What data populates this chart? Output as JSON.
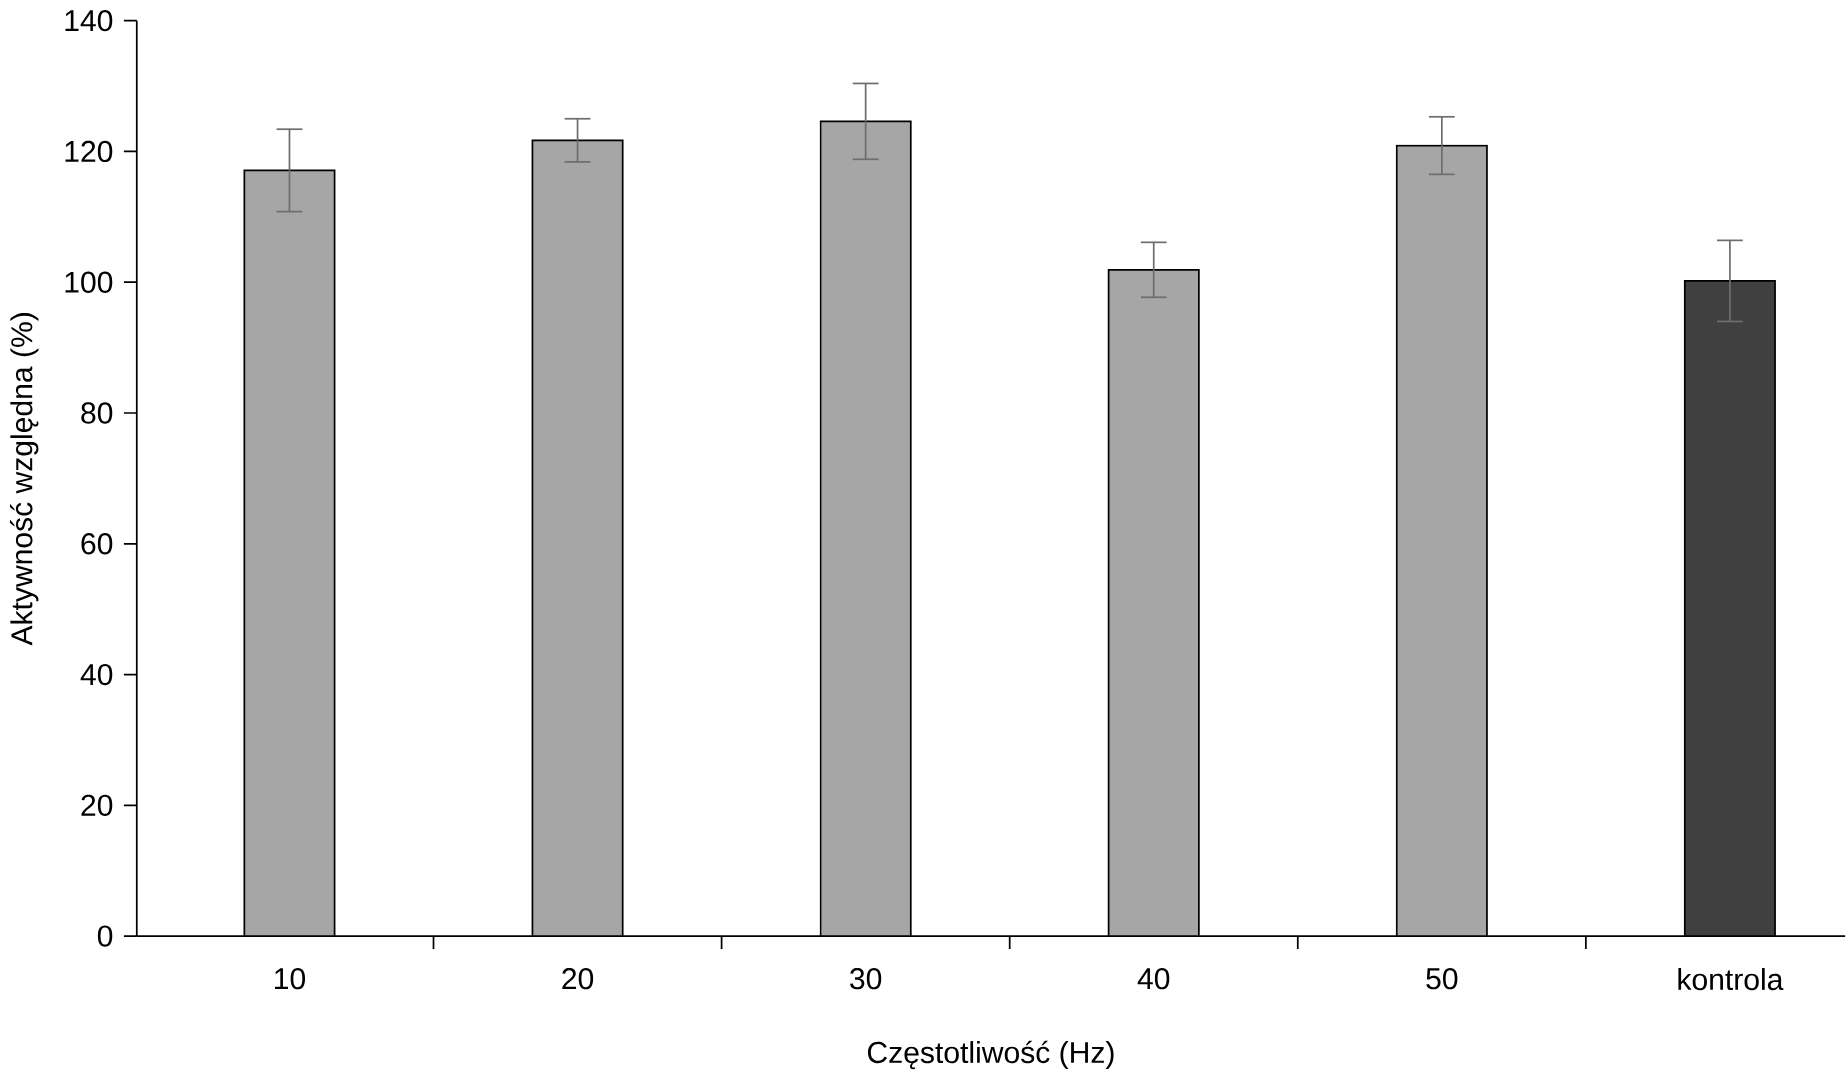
{
  "chart_data": {
    "type": "bar",
    "xlabel": "Częstotliwość (Hz)",
    "ylabel": "Aktywność względna (%)",
    "categories": [
      "10",
      "20",
      "30",
      "40",
      "50",
      "kontrola"
    ],
    "values": [
      117.1,
      121.7,
      124.6,
      101.9,
      120.9,
      100.2
    ],
    "errors": [
      6.3,
      3.3,
      5.8,
      4.2,
      4.4,
      6.2
    ],
    "colors": [
      "#a6a6a6",
      "#a6a6a6",
      "#a6a6a6",
      "#a6a6a6",
      "#a6a6a6",
      "#404040"
    ],
    "ylim": [
      0,
      140
    ],
    "yticks": [
      0,
      20,
      40,
      60,
      80,
      100,
      120,
      140
    ],
    "grid": false
  }
}
